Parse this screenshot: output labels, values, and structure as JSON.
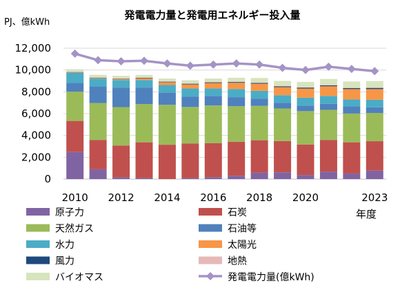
{
  "chart_data": {
    "type": "bar",
    "stacked": true,
    "title": "発電電力量と発電用エネルギー投入量",
    "ylabel": "PJ、億kWh",
    "xlabel": "年度",
    "ylim": [
      0,
      12000
    ],
    "yticks": [
      "0",
      "2,000",
      "4,000",
      "6,000",
      "8,000",
      "10,000",
      "12,000"
    ],
    "ytick_values": [
      0,
      2000,
      4000,
      6000,
      8000,
      10000,
      12000
    ],
    "x": [
      "2010",
      "2011",
      "2012",
      "2013",
      "2014",
      "2015",
      "2016",
      "2017",
      "2018",
      "2019",
      "2020",
      "2021",
      "2022",
      "2023"
    ],
    "xtick_labels": {
      "2010": "2010",
      "2012": "2012",
      "2014": "2014",
      "2016": "2016",
      "2018": "2018",
      "2020": "2020",
      "2023": "2023"
    },
    "grid": true,
    "legend_position": "bottom",
    "series": [
      {
        "name": "原子力",
        "color": "#8064a2",
        "values": [
          2480,
          890,
          150,
          90,
          0,
          90,
          170,
          300,
          590,
          620,
          370,
          680,
          510,
          770
        ]
      },
      {
        "name": "石炭",
        "color": "#c0504d",
        "values": [
          2850,
          2700,
          2930,
          3280,
          3150,
          3180,
          3130,
          3120,
          2970,
          2860,
          2800,
          2910,
          2860,
          2700
        ]
      },
      {
        "name": "天然ガス",
        "color": "#9bbb59",
        "values": [
          2680,
          3380,
          3520,
          3510,
          3660,
          3340,
          3450,
          3260,
          3150,
          2990,
          3060,
          2760,
          2640,
          2590
        ]
      },
      {
        "name": "石油等",
        "color": "#4f81bd",
        "values": [
          820,
          1520,
          1790,
          1510,
          1110,
          940,
          870,
          830,
          670,
          530,
          510,
          550,
          650,
          520
        ]
      },
      {
        "name": "水力",
        "color": "#4bacc6",
        "values": [
          900,
          720,
          690,
          690,
          700,
          760,
          690,
          750,
          720,
          690,
          720,
          720,
          640,
          690
        ]
      },
      {
        "name": "太陽光",
        "color": "#f79646",
        "values": [
          40,
          50,
          80,
          150,
          260,
          370,
          500,
          570,
          650,
          740,
          840,
          890,
          950,
          980
        ]
      },
      {
        "name": "風力",
        "color": "#1f497d",
        "values": [
          40,
          40,
          40,
          50,
          50,
          60,
          60,
          70,
          70,
          80,
          90,
          90,
          90,
          110
        ]
      },
      {
        "name": "地熱",
        "color": "#e6b9b8",
        "values": [
          30,
          30,
          30,
          30,
          30,
          30,
          30,
          30,
          30,
          30,
          30,
          30,
          30,
          30
        ]
      },
      {
        "name": "バイオマス",
        "color": "#d7e4bd",
        "values": [
          230,
          230,
          240,
          240,
          260,
          290,
          320,
          360,
          420,
          460,
          490,
          550,
          580,
          600
        ]
      }
    ],
    "line_series": {
      "name": "発電電力量(億kWh)",
      "color": "#a593c6",
      "values": [
        11500,
        10900,
        10800,
        10850,
        10600,
        10400,
        10500,
        10600,
        10500,
        10200,
        10000,
        10300,
        10100,
        9900
      ]
    }
  }
}
